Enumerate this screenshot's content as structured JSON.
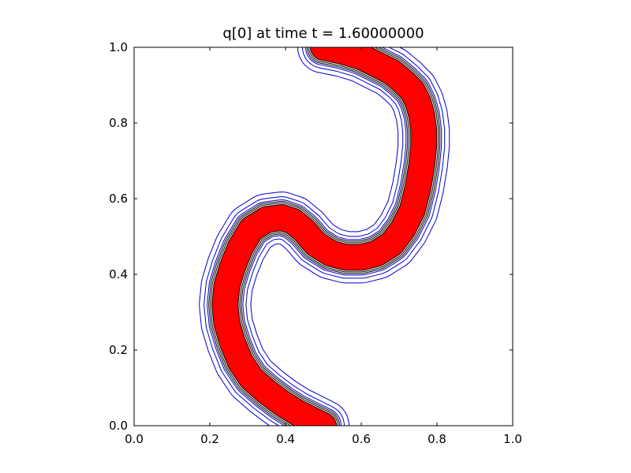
{
  "chart_data": {
    "type": "line",
    "title": "q[0] at time t =     1.60000000",
    "xlabel": "",
    "ylabel": "",
    "xlim": [
      0.0,
      1.0
    ],
    "ylim": [
      0.0,
      1.0
    ],
    "xticks": [
      "0.0",
      "0.2",
      "0.4",
      "0.6",
      "0.8",
      "1.0"
    ],
    "yticks": [
      "0.0",
      "0.2",
      "0.4",
      "0.6",
      "0.8",
      "1.0"
    ],
    "grid": false,
    "legend": "none",
    "colors": {
      "fill": "#ff0000",
      "contour_outer": "#0000cc",
      "contour_inner": "#000000",
      "frame": "#000000"
    },
    "curve": {
      "x": [
        0.5,
        0.47,
        0.43,
        0.39,
        0.35,
        0.31,
        0.28,
        0.26,
        0.245,
        0.24,
        0.245,
        0.26,
        0.28,
        0.31,
        0.35,
        0.39,
        0.42,
        0.45,
        0.48,
        0.52,
        0.56,
        0.6,
        0.64,
        0.68,
        0.71,
        0.735,
        0.75,
        0.76,
        0.765,
        0.765,
        0.76,
        0.75,
        0.735,
        0.71,
        0.68,
        0.64,
        0.6,
        0.55,
        0.5
      ],
      "y": [
        0.0,
        0.015,
        0.035,
        0.06,
        0.09,
        0.125,
        0.17,
        0.22,
        0.27,
        0.32,
        0.37,
        0.42,
        0.47,
        0.52,
        0.545,
        0.55,
        0.54,
        0.515,
        0.48,
        0.455,
        0.445,
        0.445,
        0.455,
        0.48,
        0.52,
        0.57,
        0.63,
        0.69,
        0.74,
        0.78,
        0.82,
        0.855,
        0.885,
        0.91,
        0.935,
        0.955,
        0.975,
        0.99,
        1.0
      ]
    }
  }
}
